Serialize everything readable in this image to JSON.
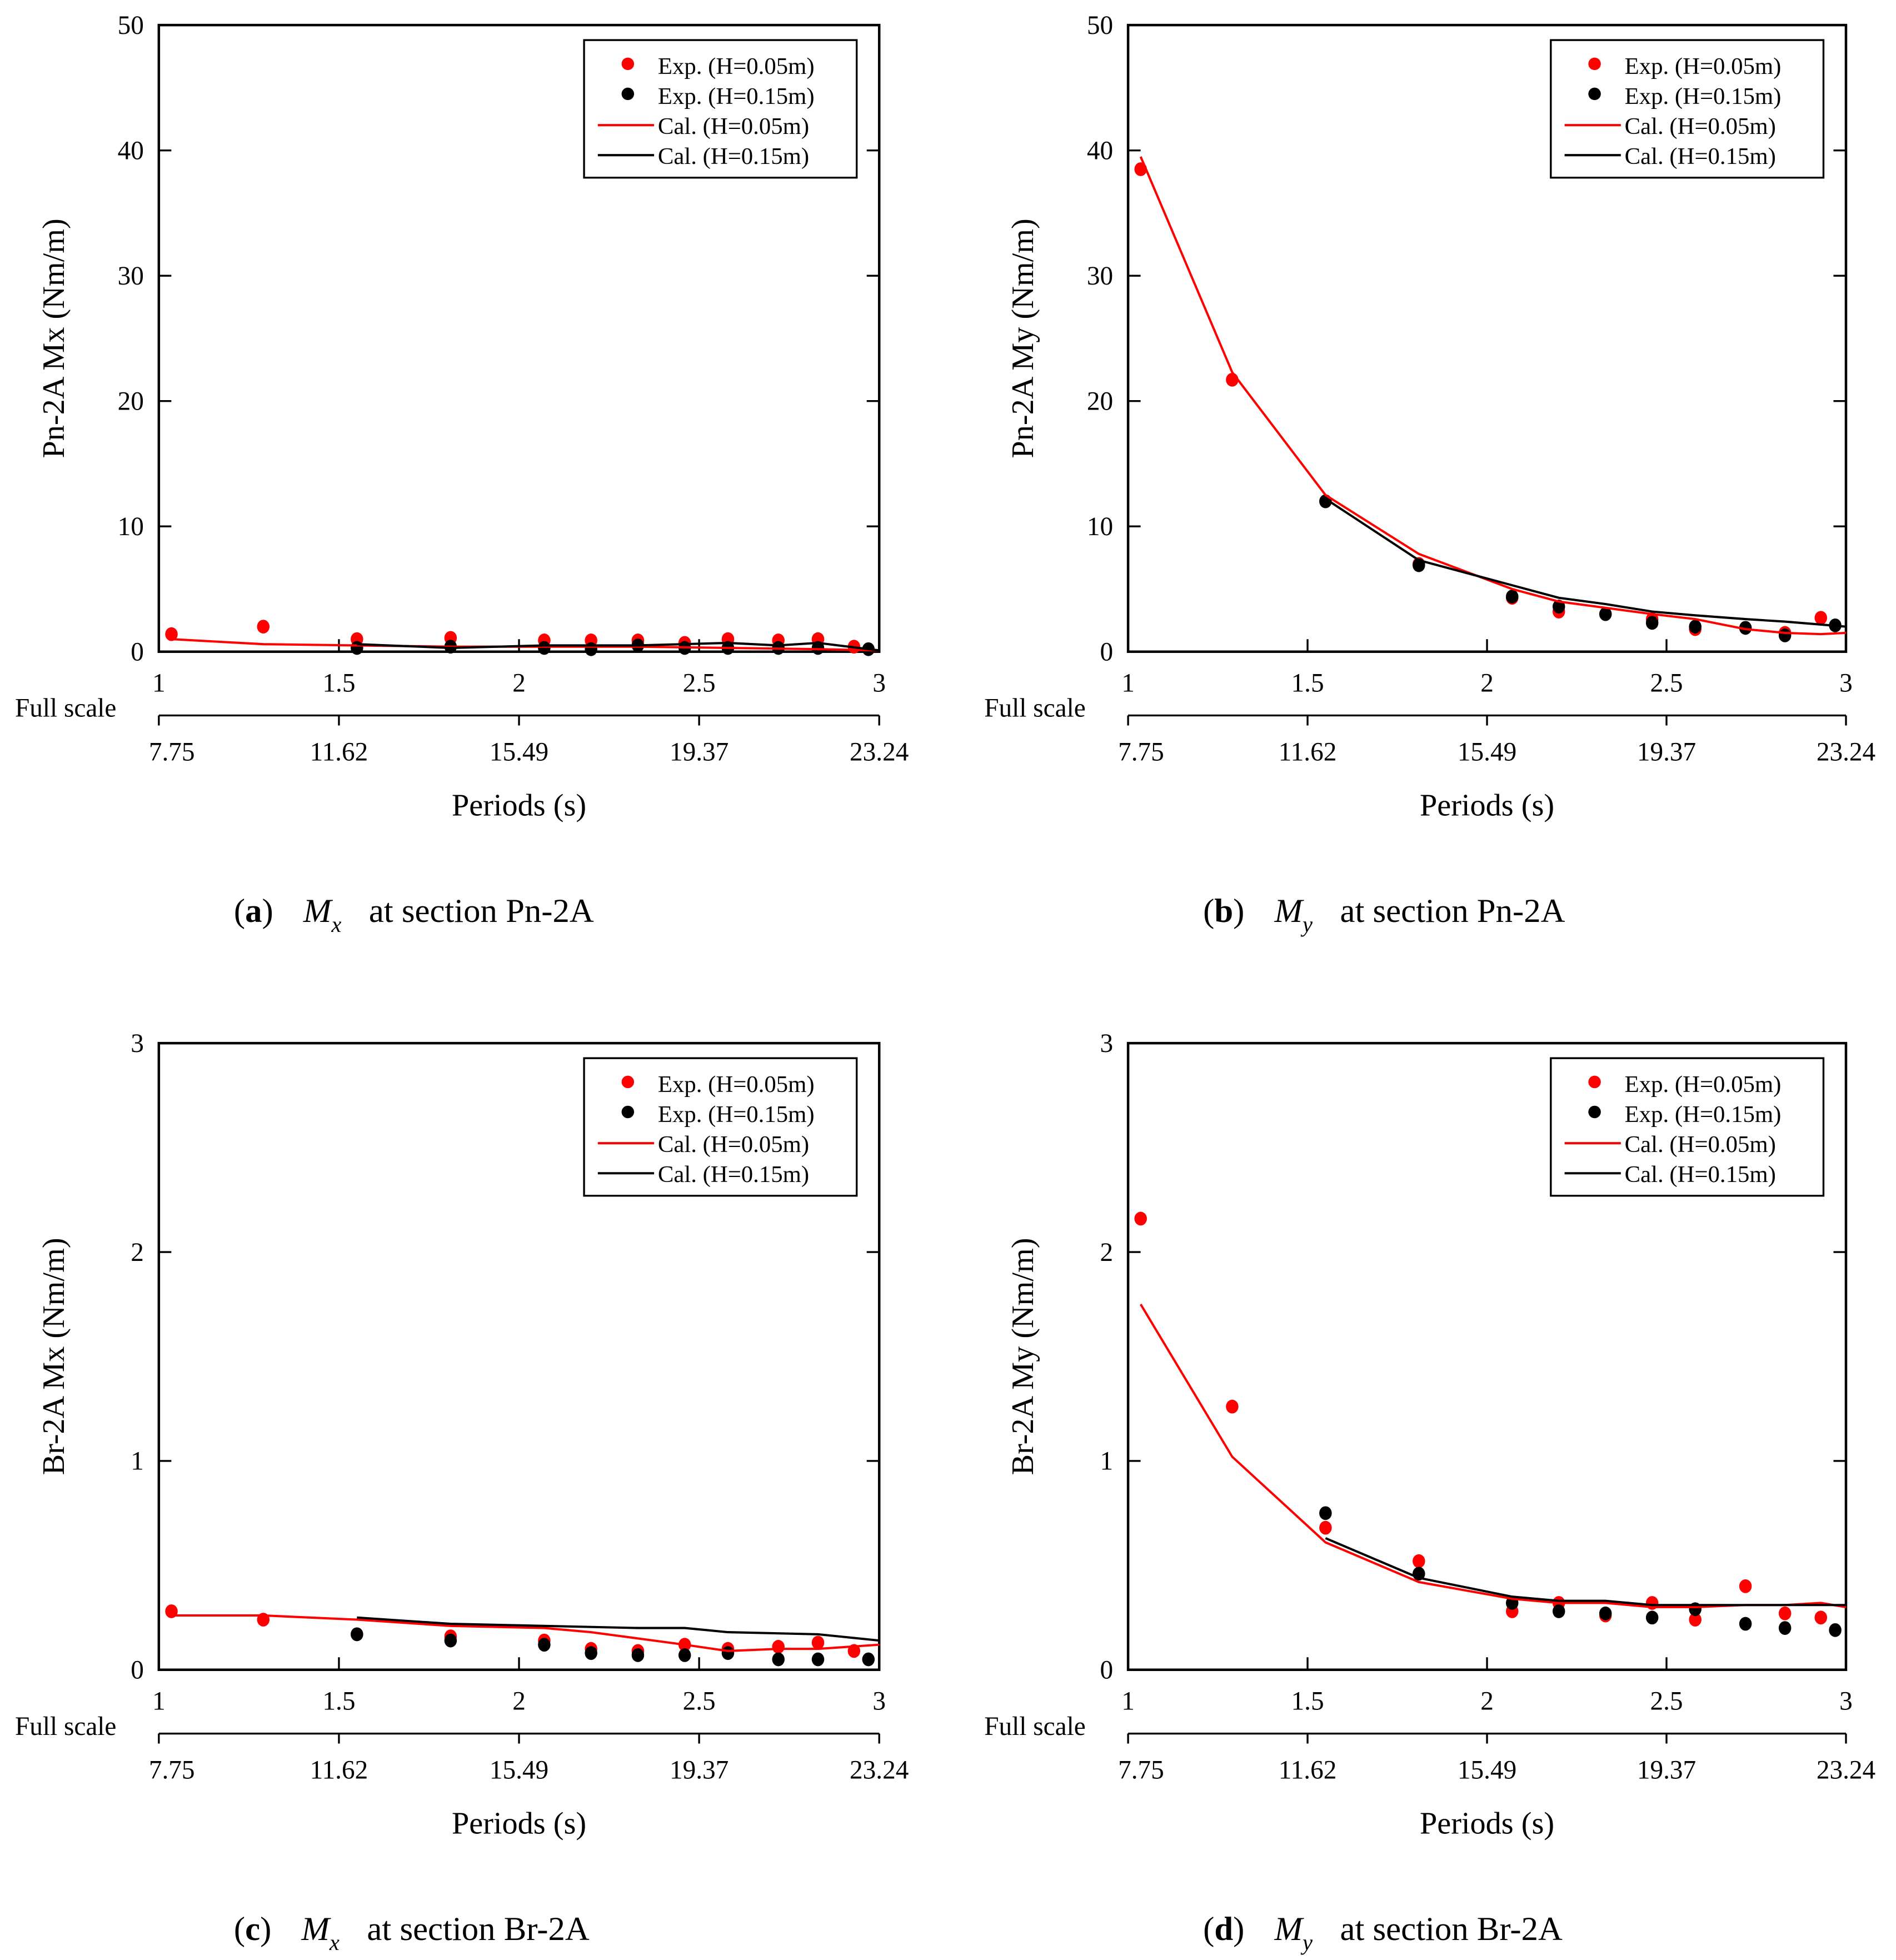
{
  "colors": {
    "red": "#ff0000",
    "black": "#000000"
  },
  "x_tick_labels": [
    "1",
    "1.5",
    "2",
    "2.5",
    "3"
  ],
  "full_scale_label": "Full scale",
  "full_scale_ticks": [
    "7.75",
    "11.62",
    "15.49",
    "19.37",
    "23.24"
  ],
  "xlabel": "Periods (s)",
  "legend": [
    "Exp. (H=0.05m)",
    "Exp. (H=0.15m)",
    "Cal.  (H=0.05m)",
    "Cal.  (H=0.15m)"
  ],
  "chart_data": [
    {
      "type": "scatter+line",
      "letter": "a",
      "moment": "M",
      "sub": "x",
      "caption_rest": "at section Pn-2A",
      "ylabel": "Pn-2A Mx (Nm/m)",
      "xlim": [
        1,
        3
      ],
      "ylim": [
        0,
        50
      ],
      "yticks": [
        0,
        10,
        20,
        30,
        40,
        50
      ],
      "series": [
        {
          "name": "Exp. (H=0.05m)",
          "kind": "points",
          "color": "#ff0000",
          "x": [
            1.035,
            1.29,
            1.55,
            1.81,
            2.07,
            2.2,
            2.33,
            2.46,
            2.58,
            2.72,
            2.83,
            2.93
          ],
          "y": [
            1.4,
            2.0,
            1.0,
            1.1,
            0.9,
            0.9,
            0.9,
            0.7,
            1.0,
            0.9,
            1.0,
            0.4
          ]
        },
        {
          "name": "Exp. (H=0.15m)",
          "kind": "points",
          "color": "#000000",
          "x": [
            1.55,
            1.81,
            2.07,
            2.2,
            2.33,
            2.46,
            2.58,
            2.72,
            2.83,
            2.97
          ],
          "y": [
            0.3,
            0.4,
            0.3,
            0.2,
            0.5,
            0.3,
            0.3,
            0.3,
            0.3,
            0.2
          ]
        },
        {
          "name": "Cal. (H=0.05m)",
          "kind": "line",
          "color": "#ff0000",
          "x": [
            1.035,
            1.29,
            1.55,
            1.81,
            2.07,
            2.33,
            2.58,
            2.83,
            3.0
          ],
          "y": [
            1.0,
            0.6,
            0.5,
            0.4,
            0.4,
            0.4,
            0.3,
            0.2,
            0.1
          ]
        },
        {
          "name": "Cal. (H=0.15m)",
          "kind": "line",
          "color": "#000000",
          "x": [
            1.55,
            1.81,
            2.07,
            2.33,
            2.58,
            2.72,
            2.83,
            3.0
          ],
          "y": [
            0.6,
            0.3,
            0.5,
            0.5,
            0.7,
            0.5,
            0.7,
            0.1
          ]
        }
      ]
    },
    {
      "type": "scatter+line",
      "letter": "b",
      "moment": "M",
      "sub": "y",
      "caption_rest": "at section Pn-2A",
      "ylabel": "Pn-2A My (Nm/m)",
      "xlim": [
        1,
        3
      ],
      "ylim": [
        0,
        50
      ],
      "yticks": [
        0,
        10,
        20,
        30,
        40,
        50
      ],
      "series": [
        {
          "name": "Exp. (H=0.05m)",
          "kind": "points",
          "color": "#ff0000",
          "x": [
            1.035,
            1.29,
            1.55,
            1.81,
            2.07,
            2.2,
            2.33,
            2.46,
            2.58,
            2.72,
            2.83,
            2.93
          ],
          "y": [
            38.5,
            21.7,
            12.0,
            7.0,
            4.3,
            3.2,
            3.0,
            2.6,
            1.8,
            1.9,
            1.5,
            2.7
          ]
        },
        {
          "name": "Exp. (H=0.15m)",
          "kind": "points",
          "color": "#000000",
          "x": [
            1.55,
            1.81,
            2.07,
            2.2,
            2.33,
            2.46,
            2.58,
            2.72,
            2.83,
            2.97
          ],
          "y": [
            12.0,
            6.9,
            4.4,
            3.6,
            3.0,
            2.3,
            2.0,
            1.9,
            1.3,
            2.1
          ]
        },
        {
          "name": "Cal. (H=0.05m)",
          "kind": "line",
          "color": "#ff0000",
          "x": [
            1.035,
            1.29,
            1.55,
            1.81,
            2.07,
            2.2,
            2.33,
            2.46,
            2.58,
            2.72,
            2.83,
            2.93,
            3.0
          ],
          "y": [
            39.5,
            22.3,
            12.5,
            7.8,
            5.0,
            4.0,
            3.5,
            3.0,
            2.6,
            1.8,
            1.5,
            1.4,
            1.5
          ]
        },
        {
          "name": "Cal. (H=0.15m)",
          "kind": "line",
          "color": "#000000",
          "x": [
            1.55,
            1.81,
            2.07,
            2.2,
            2.33,
            2.46,
            2.58,
            2.72,
            2.83,
            3.0
          ],
          "y": [
            12.2,
            7.3,
            5.3,
            4.3,
            3.8,
            3.2,
            2.9,
            2.6,
            2.4,
            2.0
          ]
        }
      ]
    },
    {
      "type": "scatter+line",
      "letter": "c",
      "moment": "M",
      "sub": "x",
      "caption_rest": "at section Br-2A",
      "ylabel": "Br-2A Mx (Nm/m)",
      "xlim": [
        1,
        3
      ],
      "ylim": [
        0,
        3
      ],
      "yticks": [
        0,
        1,
        2,
        3
      ],
      "series": [
        {
          "name": "Exp. (H=0.05m)",
          "kind": "points",
          "color": "#ff0000",
          "x": [
            1.035,
            1.29,
            1.55,
            1.81,
            2.07,
            2.2,
            2.33,
            2.46,
            2.58,
            2.72,
            2.83,
            2.93
          ],
          "y": [
            0.28,
            0.24,
            0.17,
            0.16,
            0.14,
            0.1,
            0.09,
            0.12,
            0.1,
            0.11,
            0.13,
            0.09
          ]
        },
        {
          "name": "Exp. (H=0.15m)",
          "kind": "points",
          "color": "#000000",
          "x": [
            1.55,
            1.81,
            2.07,
            2.2,
            2.33,
            2.46,
            2.58,
            2.72,
            2.83,
            2.97
          ],
          "y": [
            0.17,
            0.14,
            0.12,
            0.08,
            0.07,
            0.07,
            0.08,
            0.05,
            0.05,
            0.05
          ]
        },
        {
          "name": "Cal. (H=0.05m)",
          "kind": "line",
          "color": "#ff0000",
          "x": [
            1.035,
            1.29,
            1.55,
            1.81,
            2.07,
            2.2,
            2.33,
            2.46,
            2.58,
            2.72,
            2.83,
            3.0
          ],
          "y": [
            0.26,
            0.26,
            0.24,
            0.21,
            0.2,
            0.18,
            0.15,
            0.12,
            0.09,
            0.1,
            0.1,
            0.12
          ]
        },
        {
          "name": "Cal. (H=0.15m)",
          "kind": "line",
          "color": "#000000",
          "x": [
            1.55,
            1.81,
            2.07,
            2.33,
            2.46,
            2.58,
            2.83,
            3.0
          ],
          "y": [
            0.25,
            0.22,
            0.21,
            0.2,
            0.2,
            0.18,
            0.17,
            0.14
          ]
        }
      ]
    },
    {
      "type": "scatter+line",
      "letter": "d",
      "moment": "M",
      "sub": "y",
      "caption_rest": "at section Br-2A",
      "ylabel": "Br-2A My (Nm/m)",
      "xlim": [
        1,
        3
      ],
      "ylim": [
        0,
        3
      ],
      "yticks": [
        0,
        1,
        2,
        3
      ],
      "series": [
        {
          "name": "Exp. (H=0.05m)",
          "kind": "points",
          "color": "#ff0000",
          "x": [
            1.035,
            1.29,
            1.55,
            1.81,
            2.07,
            2.2,
            2.33,
            2.46,
            2.58,
            2.72,
            2.83,
            2.93
          ],
          "y": [
            2.16,
            1.26,
            0.68,
            0.52,
            0.28,
            0.32,
            0.26,
            0.32,
            0.24,
            0.4,
            0.27,
            0.25
          ]
        },
        {
          "name": "Exp. (H=0.15m)",
          "kind": "points",
          "color": "#000000",
          "x": [
            1.55,
            1.81,
            2.07,
            2.2,
            2.33,
            2.46,
            2.58,
            2.72,
            2.83,
            2.97
          ],
          "y": [
            0.75,
            0.46,
            0.32,
            0.28,
            0.27,
            0.25,
            0.29,
            0.22,
            0.2,
            0.19
          ]
        },
        {
          "name": "Cal. (H=0.05m)",
          "kind": "line",
          "color": "#ff0000",
          "x": [
            1.035,
            1.29,
            1.55,
            1.81,
            2.07,
            2.2,
            2.33,
            2.46,
            2.58,
            2.72,
            2.83,
            2.93,
            3.0
          ],
          "y": [
            1.75,
            1.02,
            0.61,
            0.42,
            0.34,
            0.32,
            0.32,
            0.3,
            0.3,
            0.31,
            0.31,
            0.32,
            0.3
          ]
        },
        {
          "name": "Cal. (H=0.15m)",
          "kind": "line",
          "color": "#000000",
          "x": [
            1.55,
            1.81,
            2.07,
            2.2,
            2.33,
            2.46,
            2.58,
            2.72,
            3.0
          ],
          "y": [
            0.63,
            0.44,
            0.35,
            0.33,
            0.33,
            0.31,
            0.31,
            0.31,
            0.31
          ]
        }
      ]
    }
  ]
}
